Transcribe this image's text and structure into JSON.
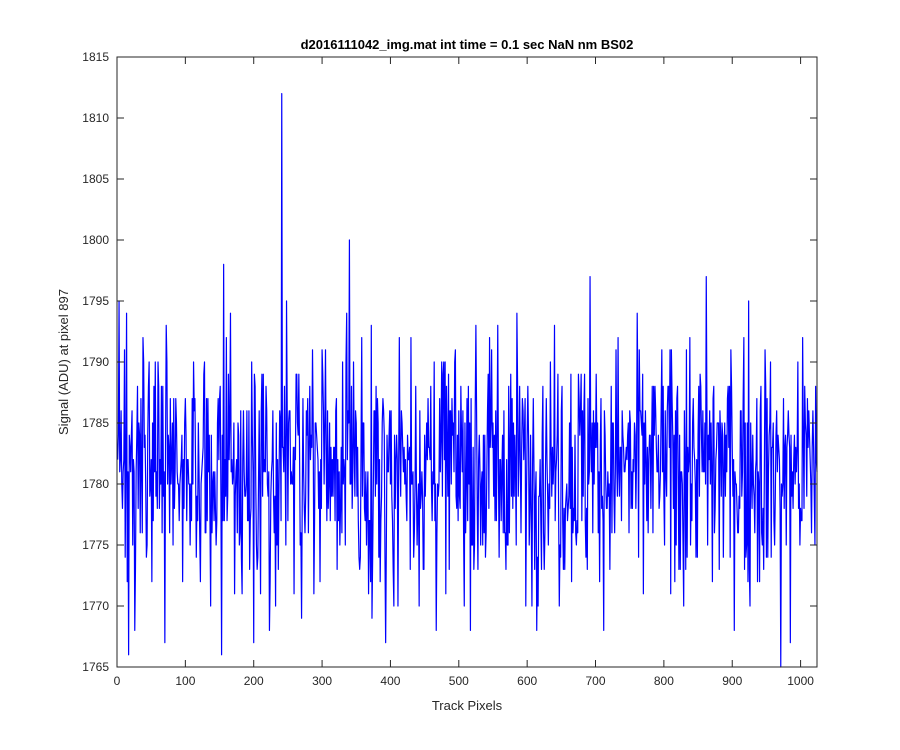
{
  "chart_data": {
    "type": "line",
    "title": "d2016111042_img.mat int time = 0.1 sec  NaN nm BS02",
    "xlabel": "Track Pixels",
    "ylabel": "Signal (ADU) at pixel 897",
    "xlim": [
      0,
      1024
    ],
    "ylim": [
      1765,
      1815
    ],
    "xticks": [
      0,
      100,
      200,
      300,
      400,
      500,
      600,
      700,
      800,
      900,
      1000
    ],
    "yticks": [
      1765,
      1770,
      1775,
      1780,
      1785,
      1790,
      1795,
      1800,
      1805,
      1810,
      1815
    ],
    "grid": false,
    "series": [
      {
        "color": "#0000ff",
        "n_points": 1024,
        "mean": 1781.5,
        "notable_points": [
          {
            "x": 1,
            "y": 1782
          },
          {
            "x": 14,
            "y": 1794
          },
          {
            "x": 17,
            "y": 1766
          },
          {
            "x": 70,
            "y": 1767
          },
          {
            "x": 153,
            "y": 1766
          },
          {
            "x": 156,
            "y": 1798
          },
          {
            "x": 200,
            "y": 1767
          },
          {
            "x": 241,
            "y": 1812
          },
          {
            "x": 340,
            "y": 1800
          },
          {
            "x": 393,
            "y": 1767
          },
          {
            "x": 692,
            "y": 1797
          },
          {
            "x": 862,
            "y": 1797
          },
          {
            "x": 971,
            "y": 1765
          },
          {
            "x": 985,
            "y": 1767
          },
          {
            "x": 1024,
            "y": 1781
          }
        ]
      }
    ]
  }
}
